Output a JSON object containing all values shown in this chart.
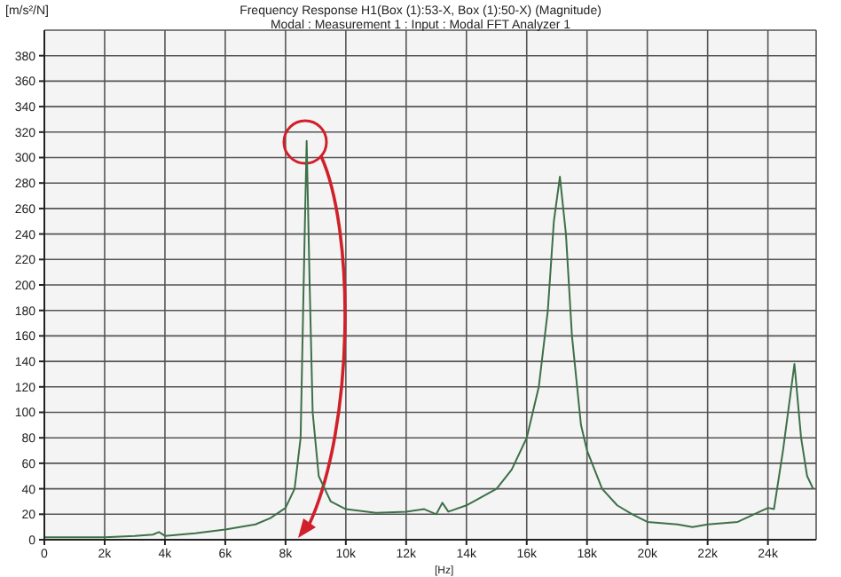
{
  "chart_data": {
    "type": "line",
    "title": "Frequency Response H1(Box (1):53-X, Box (1):50-X) (Magnitude)",
    "subtitle": "Modal : Measurement 1 : Input : Modal FFT Analyzer 1",
    "xlabel": "[Hz]",
    "ylabel": "[m/s²/N]",
    "x": [
      0,
      1000,
      2000,
      3000,
      3600,
      3800,
      4000,
      5000,
      6000,
      7000,
      7500,
      8000,
      8300,
      8500,
      8600,
      8700,
      8800,
      8900,
      9100,
      9500,
      10000,
      11000,
      12000,
      12600,
      13000,
      13200,
      13400,
      14000,
      15000,
      15500,
      16000,
      16400,
      16700,
      16900,
      17100,
      17300,
      17500,
      17800,
      18000,
      18500,
      19000,
      19500,
      20000,
      21000,
      21500,
      22000,
      23000,
      24000,
      24200,
      24500,
      24880,
      25100,
      25300,
      25500
    ],
    "series": [
      {
        "color": "#3d7048",
        "values": [
          2,
          2,
          2,
          3,
          4,
          6,
          3,
          5,
          8,
          12,
          17,
          25,
          40,
          80,
          200,
          313,
          200,
          100,
          50,
          30,
          24,
          21,
          22,
          24,
          20,
          29,
          22,
          27,
          40,
          55,
          80,
          120,
          180,
          250,
          285,
          240,
          160,
          90,
          70,
          40,
          27,
          20,
          14,
          12,
          10,
          12,
          14,
          25,
          24,
          70,
          138,
          80,
          50,
          40
        ]
      }
    ],
    "xlim": [
      0,
      25600
    ],
    "ylim": [
      0,
      400
    ],
    "xticks": [
      0,
      {
        "value": 2000,
        "label": "2k"
      },
      {
        "value": 4000,
        "label": "4k"
      },
      {
        "value": 6000,
        "label": "6k"
      },
      {
        "value": 8000,
        "label": "8k"
      },
      {
        "value": 10000,
        "label": "10k"
      },
      {
        "value": 12000,
        "label": "12k"
      },
      {
        "value": 14000,
        "label": "14k"
      },
      {
        "value": 16000,
        "label": "16k"
      },
      {
        "value": 18000,
        "label": "18k"
      },
      {
        "value": 20000,
        "label": "20k"
      },
      {
        "value": 22000,
        "label": "22k"
      },
      {
        "value": 24000,
        "label": "24k"
      }
    ],
    "yticks": [
      0,
      20,
      40,
      60,
      80,
      100,
      120,
      140,
      160,
      180,
      200,
      220,
      240,
      260,
      280,
      300,
      320,
      340,
      360,
      380
    ],
    "grid": true,
    "legend": false,
    "marker": "none",
    "line_style": "solid"
  }
}
